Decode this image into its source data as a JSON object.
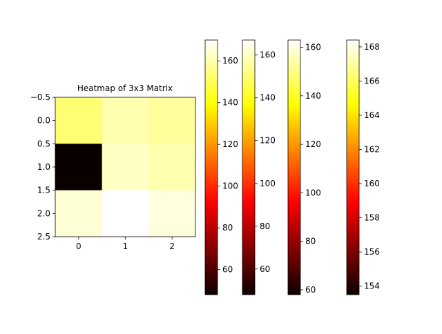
{
  "chart_data": {
    "type": "heatmap",
    "title": "Heatmap of 3x3 Matrix",
    "xlabel": "",
    "ylabel": "",
    "colormap": "hot",
    "x_ticks": [
      "0",
      "1",
      "2"
    ],
    "y_ticks": [
      "−0.5",
      "0.0",
      "0.5",
      "1.0",
      "1.5",
      "2.0",
      "2.5"
    ],
    "matrix": [
      [
        153,
        160,
        158
      ],
      [
        48,
        163,
        160
      ],
      [
        165,
        170,
        166
      ]
    ],
    "colorbars": [
      {
        "min": 48,
        "max": 170,
        "ticks": [
          "60",
          "80",
          "100",
          "120",
          "140",
          "160"
        ],
        "tick_values": [
          60,
          80,
          100,
          120,
          140,
          160
        ]
      },
      {
        "min": 48,
        "max": 167,
        "ticks": [
          "60",
          "80",
          "100",
          "120",
          "140",
          "160"
        ],
        "tick_values": [
          60,
          80,
          100,
          120,
          140,
          160
        ]
      },
      {
        "min": 58,
        "max": 163,
        "ticks": [
          "60",
          "80",
          "100",
          "120",
          "140",
          "160"
        ],
        "tick_values": [
          60,
          80,
          100,
          120,
          140,
          160
        ]
      },
      {
        "min": 153.5,
        "max": 168.4,
        "ticks": [
          "154",
          "156",
          "158",
          "160",
          "162",
          "164",
          "166",
          "168"
        ],
        "tick_values": [
          154,
          156,
          158,
          160,
          162,
          164,
          166,
          168
        ]
      }
    ]
  }
}
